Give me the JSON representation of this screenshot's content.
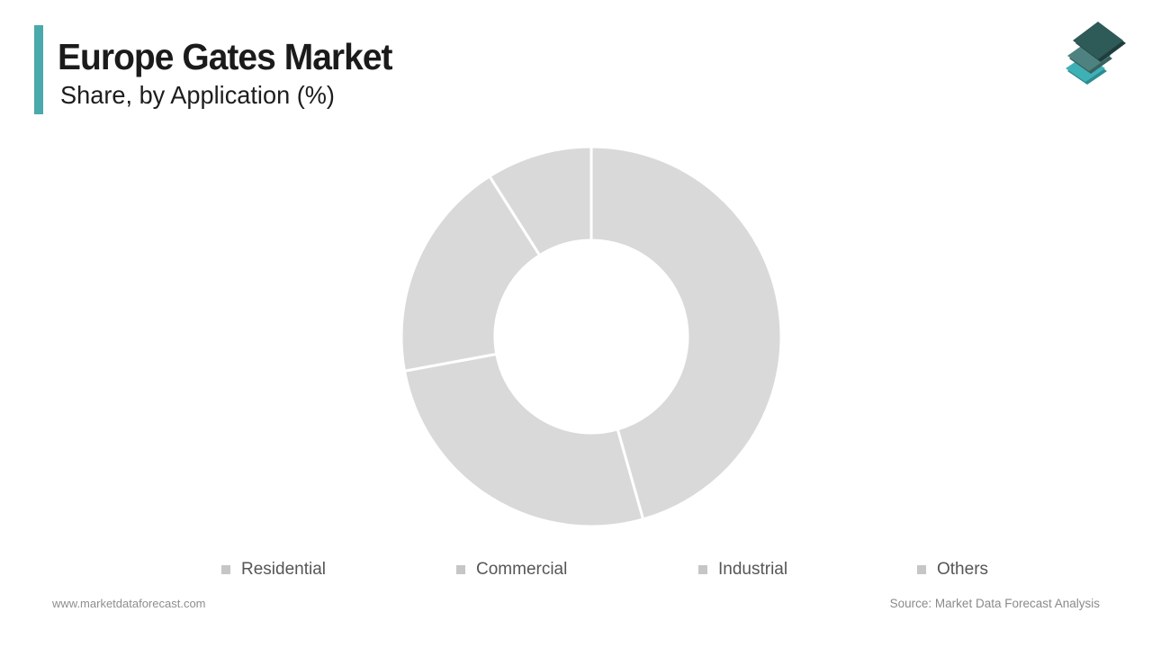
{
  "header": {
    "title": "Europe Gates Market",
    "subtitle": "Share, by Application (%)"
  },
  "logo": {
    "name": "market-data-forecast-logo",
    "layer_colors": {
      "top": "#2e5a58",
      "top_edge": "#1e3d3c",
      "middle": "#4e8280",
      "middle_edge": "#39615f",
      "bottom": "#3eb1b6",
      "bottom_edge": "#2c8c91"
    }
  },
  "chart_data": {
    "type": "pie",
    "subtype": "donut",
    "title": "Europe Gates Market Share, by Application (%)",
    "categories": [
      "Residential",
      "Commercial",
      "Industrial",
      "Others"
    ],
    "values": [
      45.6,
      26.5,
      18.9,
      9.0
    ],
    "unit": "%",
    "start_angle_deg": 0,
    "direction": "clockwise",
    "inner_radius_ratio": 0.5,
    "segment_color": "#d9d9d9",
    "divider_color": "#ffffff",
    "legend_position": "bottom",
    "data_labels_visible": false
  },
  "legend": {
    "swatch_color": "#c6c6c6",
    "text_color": "#565656"
  },
  "footer": {
    "website": "www.marketdataforecast.com",
    "source": "Source: Market Data Forecast Analysis"
  },
  "colors": {
    "accent_teal": "#4aa9ab",
    "background": "#ffffff",
    "title_text": "#1b1b1b"
  }
}
